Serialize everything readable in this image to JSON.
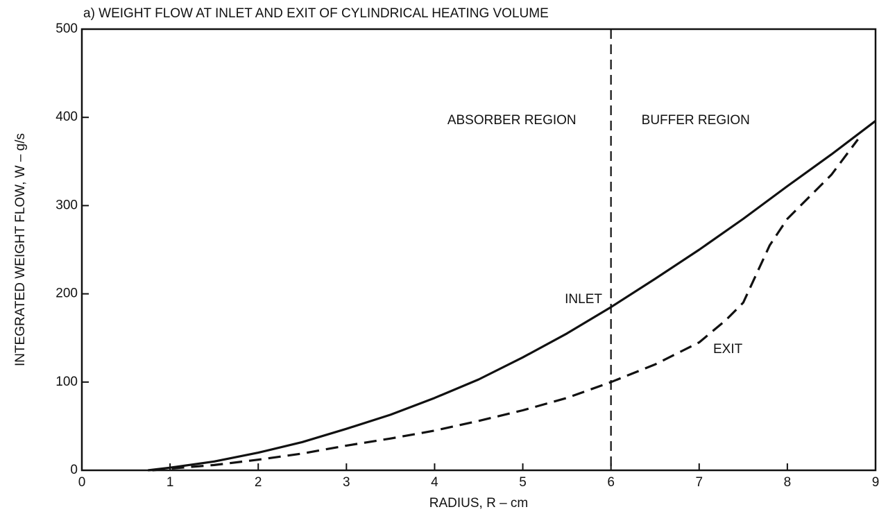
{
  "chart_data": {
    "type": "line",
    "title": "a) WEIGHT FLOW AT INLET AND EXIT OF CYLINDRICAL HEATING VOLUME",
    "xlabel": "RADIUS, R – cm",
    "ylabel": "INTEGRATED WEIGHT FLOW, W – g/s",
    "xlim": [
      0,
      9
    ],
    "ylim": [
      0,
      500
    ],
    "xticks": [
      0,
      1,
      2,
      3,
      4,
      5,
      6,
      7,
      8,
      9
    ],
    "yticks": [
      0,
      100,
      200,
      300,
      400,
      500
    ],
    "vline": 6,
    "annotations": [
      "ABSORBER REGION",
      "BUFFER REGION"
    ],
    "series": [
      {
        "name": "INLET",
        "color": "#111111",
        "dashed": false,
        "x": [
          0.75,
          1,
          1.5,
          2,
          2.5,
          3,
          3.5,
          4,
          4.5,
          5,
          5.5,
          6,
          6.5,
          7,
          7.5,
          8,
          8.5,
          9
        ],
        "values": [
          0,
          3,
          10,
          20,
          32,
          47,
          63,
          82,
          103,
          128,
          155,
          185,
          217,
          250,
          285,
          322,
          358,
          396
        ]
      },
      {
        "name": "EXIT",
        "color": "#111111",
        "dashed": true,
        "x": [
          0.8,
          1,
          1.5,
          2,
          2.5,
          3,
          3.5,
          4,
          4.5,
          5,
          5.5,
          6,
          6.5,
          7,
          7.3,
          7.5,
          7.8,
          8,
          8.5,
          8.8
        ],
        "values": [
          0,
          2,
          6,
          12,
          19,
          28,
          36,
          45,
          56,
          68,
          82,
          100,
          120,
          145,
          170,
          190,
          255,
          285,
          335,
          375
        ]
      }
    ]
  }
}
